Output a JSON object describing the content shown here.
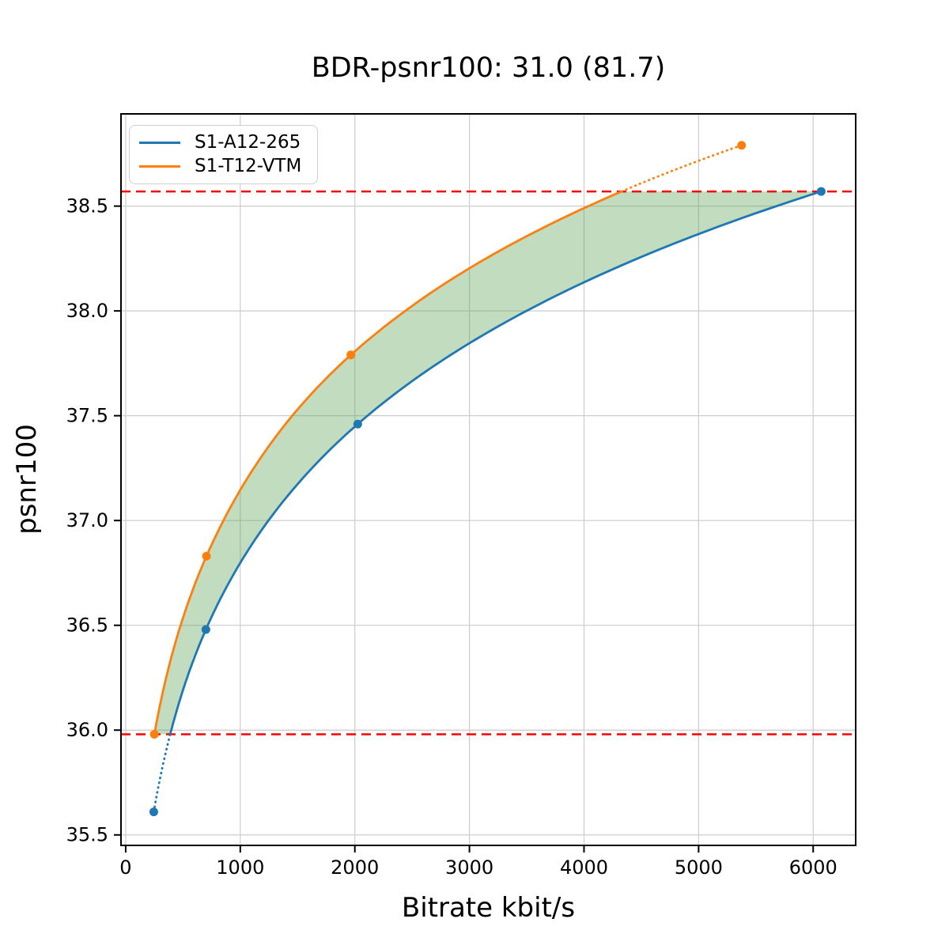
{
  "chart_data": {
    "type": "line",
    "title": "BDR-psnr100: 31.0 (81.7)",
    "xlabel": "Bitrate kbit/s",
    "ylabel": "psnr100",
    "xlim": [
      -41,
      6371
    ],
    "ylim": [
      35.45,
      38.94
    ],
    "xticks": [
      0,
      1000,
      2000,
      3000,
      4000,
      5000,
      6000
    ],
    "xtick_labels": [
      "0",
      "1000",
      "2000",
      "3000",
      "4000",
      "5000",
      "6000"
    ],
    "yticks": [
      35.5,
      36.0,
      36.5,
      37.0,
      37.5,
      38.0,
      38.5
    ],
    "ytick_labels": [
      "35.5",
      "36.0",
      "36.5",
      "37.0",
      "37.5",
      "38.0",
      "38.5"
    ],
    "grid": true,
    "legend_position": "upper-left",
    "series": [
      {
        "name": "S1-A12-265",
        "color": "#1f77b4",
        "x": [
          245,
          700,
          2025,
          6070
        ],
        "y": [
          35.61,
          36.48,
          37.46,
          38.57
        ]
      },
      {
        "name": "S1-T12-VTM",
        "color": "#ff7f0e",
        "x": [
          250,
          705,
          1965,
          5375
        ],
        "y": [
          35.98,
          36.83,
          37.79,
          38.79
        ]
      }
    ],
    "overlap_bounds": {
      "lower": 35.98,
      "upper": 38.57,
      "line_color": "#ff0000",
      "line_style": "dashed"
    },
    "fill_between": {
      "color": "#5da453",
      "opacity": 0.38,
      "range": [
        35.98,
        38.57
      ]
    },
    "colors": {
      "grid": "#cccccc",
      "spine": "#000000",
      "background": "#ffffff"
    }
  }
}
